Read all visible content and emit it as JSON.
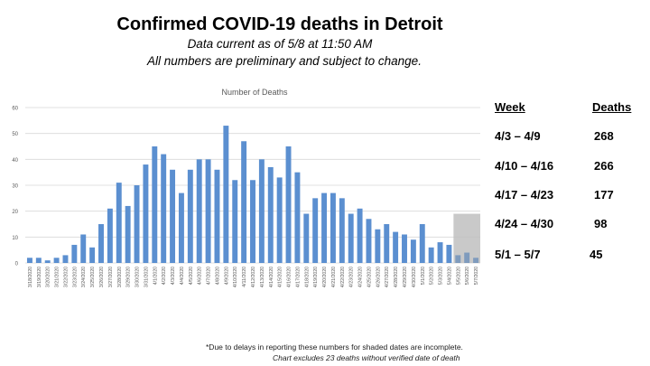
{
  "header": {
    "title": "Confirmed COVID-19 deaths in Detroit",
    "subtitle1": "Data current as of 5/8 at 11:50 AM",
    "subtitle2": "All numbers are preliminary and subject to change."
  },
  "weekly_table": {
    "col_week": "Week",
    "col_deaths": "Deaths",
    "rows": [
      {
        "week": "4/3 – 4/9",
        "deaths": "268"
      },
      {
        "week": "4/10 – 4/16",
        "deaths": "266"
      },
      {
        "week": "4/17 – 4/23",
        "deaths": "177"
      },
      {
        "week": "4/24 – 4/30",
        "deaths": "98"
      },
      {
        "week": "5/1 – 5/7",
        "deaths": "45"
      }
    ]
  },
  "footer": {
    "note1": "*Due to delays in reporting these numbers for shaded dates are incomplete.",
    "note2": "Chart excludes 23 deaths without verified date of death"
  },
  "colors": {
    "bar": "#5b8fd0",
    "shade": "#bfbfbf",
    "grid": "#d9d9d9",
    "axis_text": "#595959"
  },
  "chart_data": {
    "type": "bar",
    "title": "Number of Deaths",
    "xlabel": "",
    "ylabel": "",
    "ylim": [
      0,
      60
    ],
    "yticks": [
      0,
      10,
      20,
      30,
      40,
      50,
      60
    ],
    "grid": true,
    "legend": "none",
    "categories": [
      "3/18/2020",
      "3/19/2020",
      "3/20/2020",
      "3/21/2020",
      "3/22/2020",
      "3/23/2020",
      "3/24/2020",
      "3/25/2020",
      "3/26/2020",
      "3/27/2020",
      "3/28/2020",
      "3/29/2020",
      "3/30/2020",
      "3/31/2020",
      "4/1/2020",
      "4/2/2020",
      "4/3/2020",
      "4/4/2020",
      "4/5/2020",
      "4/6/2020",
      "4/7/2020",
      "4/8/2020",
      "4/9/2020",
      "4/10/2020",
      "4/11/2020",
      "4/12/2020",
      "4/13/2020",
      "4/14/2020",
      "4/15/2020",
      "4/16/2020",
      "4/17/2020",
      "4/18/2020",
      "4/19/2020",
      "4/20/2020",
      "4/21/2020",
      "4/22/2020",
      "4/23/2020",
      "4/24/2020",
      "4/25/2020",
      "4/26/2020",
      "4/27/2020",
      "4/28/2020",
      "4/29/2020",
      "4/30/2020",
      "5/1/2020",
      "5/2/2020",
      "5/3/2020",
      "5/4/2020",
      "5/5/2020",
      "5/6/2020",
      "5/7/2020"
    ],
    "values": [
      2,
      2,
      1,
      2,
      3,
      7,
      11,
      6,
      15,
      21,
      31,
      22,
      30,
      38,
      45,
      42,
      36,
      27,
      36,
      40,
      40,
      36,
      53,
      32,
      47,
      32,
      40,
      37,
      33,
      45,
      35,
      19,
      25,
      27,
      27,
      25,
      19,
      21,
      17,
      13,
      15,
      12,
      11,
      9,
      15,
      6,
      8,
      7,
      3,
      4,
      2
    ],
    "shaded_region": {
      "from": "5/5/2020",
      "to": "5/7/2020",
      "note": "incomplete due to reporting delays"
    }
  }
}
